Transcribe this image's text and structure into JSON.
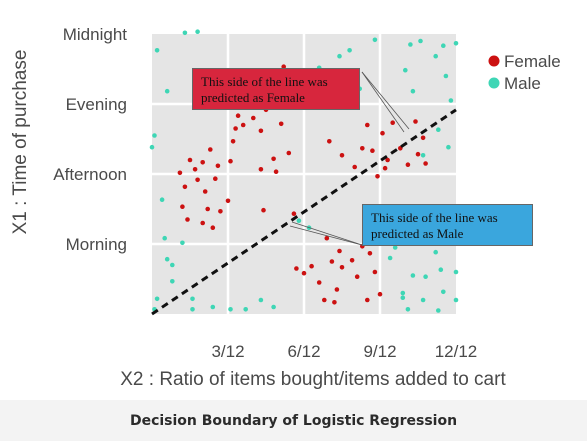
{
  "chart_data": {
    "type": "scatter",
    "title": "",
    "xlabel": "X2 : Ratio of items bought/items added to cart",
    "ylabel": "X1 : Time of purchase",
    "xlim": [
      0,
      12
    ],
    "ylim": [
      0,
      24
    ],
    "x_ticks": [
      {
        "value": 3,
        "label": "3/12"
      },
      {
        "value": 6,
        "label": "6/12"
      },
      {
        "value": 9,
        "label": "9/12"
      },
      {
        "value": 12,
        "label": "12/12"
      }
    ],
    "y_ticks": [
      {
        "value": 6,
        "label": "Morning"
      },
      {
        "value": 12,
        "label": "Afternoon"
      },
      {
        "value": 18,
        "label": "Evening"
      },
      {
        "value": 24,
        "label": "Midnight"
      }
    ],
    "grid": true,
    "legend": "top-right",
    "decision_boundary": {
      "x": [
        0,
        12
      ],
      "y": [
        0,
        17.5
      ]
    },
    "series": [
      {
        "name": "Female",
        "color": "#cc1111",
        "points": [
          [
            1.1,
            12.1
          ],
          [
            1.3,
            10.9
          ],
          [
            1.5,
            13.2
          ],
          [
            1.7,
            12.4
          ],
          [
            1.2,
            9.2
          ],
          [
            1.4,
            8.1
          ],
          [
            1.8,
            11.5
          ],
          [
            2.0,
            13.0
          ],
          [
            2.1,
            10.5
          ],
          [
            2.2,
            9.0
          ],
          [
            2.5,
            11.6
          ],
          [
            2.6,
            12.7
          ],
          [
            2.3,
            14.1
          ],
          [
            2.0,
            7.8
          ],
          [
            2.4,
            7.4
          ],
          [
            2.7,
            8.8
          ],
          [
            3.0,
            9.7
          ],
          [
            3.1,
            13.1
          ],
          [
            3.2,
            14.8
          ],
          [
            3.3,
            15.9
          ],
          [
            3.4,
            17.0
          ],
          [
            3.6,
            16.2
          ],
          [
            3.7,
            18.6
          ],
          [
            3.9,
            19.9
          ],
          [
            4.0,
            16.8
          ],
          [
            4.3,
            15.7
          ],
          [
            4.5,
            17.5
          ],
          [
            4.6,
            18.4
          ],
          [
            5.0,
            19.3
          ],
          [
            5.2,
            21.2
          ],
          [
            5.1,
            16.3
          ],
          [
            4.8,
            13.3
          ],
          [
            4.9,
            12.2
          ],
          [
            5.4,
            13.8
          ],
          [
            5.6,
            8.6
          ],
          [
            4.4,
            8.9
          ],
          [
            4.3,
            12.4
          ],
          [
            5.7,
            3.9
          ],
          [
            6.0,
            3.5
          ],
          [
            6.3,
            4.1
          ],
          [
            6.6,
            2.7
          ],
          [
            6.8,
            1.2
          ],
          [
            7.1,
            4.5
          ],
          [
            7.5,
            4.0
          ],
          [
            6.9,
            6.5
          ],
          [
            7.4,
            5.4
          ],
          [
            7.3,
            2.1
          ],
          [
            7.2,
            1.0
          ],
          [
            7.9,
            4.6
          ],
          [
            8.1,
            3.2
          ],
          [
            8.3,
            5.8
          ],
          [
            8.5,
            1.2
          ],
          [
            8.8,
            3.6
          ],
          [
            9.0,
            1.7
          ],
          [
            8.6,
            5.2
          ],
          [
            7.0,
            14.8
          ],
          [
            7.5,
            13.6
          ],
          [
            8.0,
            12.6
          ],
          [
            8.3,
            14.2
          ],
          [
            8.5,
            16.2
          ],
          [
            8.7,
            14.0
          ],
          [
            9.1,
            15.5
          ],
          [
            9.3,
            13.2
          ],
          [
            9.5,
            16.4
          ],
          [
            9.8,
            14.2
          ],
          [
            10.1,
            12.8
          ],
          [
            10.5,
            13.7
          ],
          [
            10.7,
            15.1
          ],
          [
            10.4,
            16.5
          ],
          [
            10.8,
            12.9
          ],
          [
            9.2,
            12.5
          ],
          [
            8.9,
            11.8
          ]
        ]
      },
      {
        "name": "Male",
        "color": "#3ed6b5",
        "points": [
          [
            0.2,
            22.6
          ],
          [
            1.3,
            24.1
          ],
          [
            1.8,
            24.2
          ],
          [
            0.6,
            19.1
          ],
          [
            0.1,
            15.3
          ],
          [
            0.0,
            14.3
          ],
          [
            0.4,
            9.8
          ],
          [
            1.2,
            6.1
          ],
          [
            0.5,
            6.5
          ],
          [
            0.6,
            4.7
          ],
          [
            0.8,
            4.2
          ],
          [
            0.2,
            1.3
          ],
          [
            0.1,
            0.4
          ],
          [
            0.8,
            2.8
          ],
          [
            1.6,
            1.3
          ],
          [
            1.6,
            0.4
          ],
          [
            2.4,
            0.6
          ],
          [
            3.1,
            0.4
          ],
          [
            3.7,
            0.4
          ],
          [
            4.3,
            1.2
          ],
          [
            4.8,
            0.6
          ],
          [
            6.6,
            21.1
          ],
          [
            7.4,
            22.1
          ],
          [
            7.8,
            22.6
          ],
          [
            8.2,
            19.3
          ],
          [
            8.8,
            23.5
          ],
          [
            10.2,
            23.1
          ],
          [
            10.6,
            23.4
          ],
          [
            11.2,
            22.1
          ],
          [
            11.5,
            23.0
          ],
          [
            12.0,
            23.2
          ],
          [
            11.6,
            20.4
          ],
          [
            10.3,
            19.1
          ],
          [
            11.8,
            18.3
          ],
          [
            10.0,
            20.9
          ],
          [
            11.3,
            15.8
          ],
          [
            11.7,
            14.3
          ],
          [
            11.9,
            8.7
          ],
          [
            11.9,
            6.1
          ],
          [
            11.2,
            5.3
          ],
          [
            11.4,
            3.8
          ],
          [
            12.0,
            3.6
          ],
          [
            10.8,
            3.2
          ],
          [
            11.5,
            1.9
          ],
          [
            12.0,
            1.2
          ],
          [
            11.3,
            0.3
          ],
          [
            10.7,
            1.2
          ],
          [
            10.3,
            3.3
          ],
          [
            10.1,
            0.4
          ],
          [
            9.9,
            1.4
          ],
          [
            9.6,
            5.7
          ],
          [
            9.4,
            4.8
          ],
          [
            9.9,
            1.8
          ],
          [
            10.7,
            13.6
          ],
          [
            6.2,
            7.4
          ],
          [
            5.8,
            8.0
          ]
        ]
      }
    ],
    "annotations": [
      {
        "text": "This side of the line was predicted as Female",
        "box_color": "#d7263d",
        "points_to": "female-side"
      },
      {
        "text": "This side of the line was predicted as Male",
        "box_color": "#3aa6dd",
        "points_to": "male-side"
      }
    ]
  },
  "caption": "Decision Boundary of Logistic Regression",
  "colors": {
    "plot_background": "#e5e5e5",
    "grid": "#ffffff",
    "text": "#4a4a4a",
    "boundary": "#111111"
  }
}
